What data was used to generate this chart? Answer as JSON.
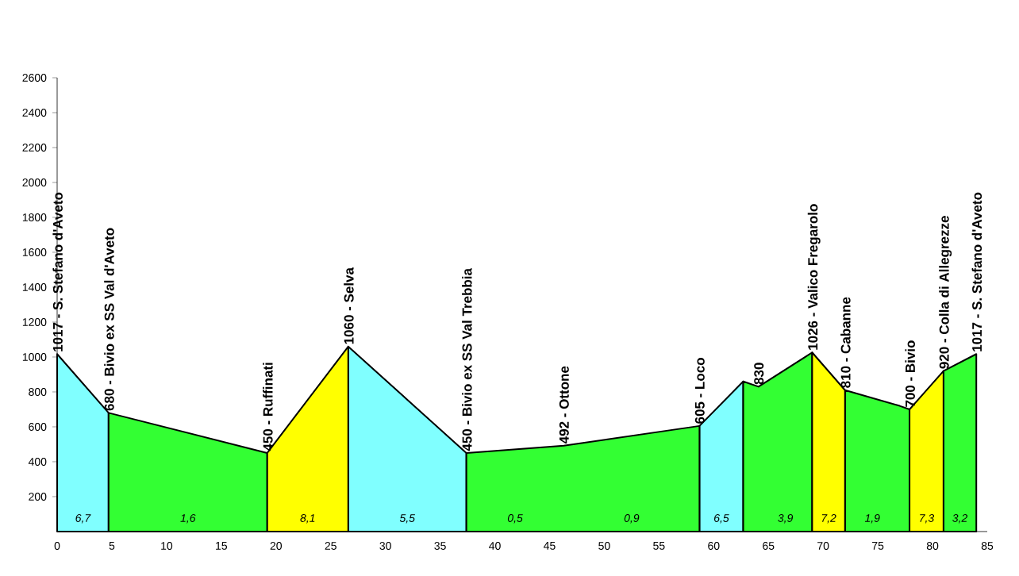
{
  "chart_data": {
    "type": "area",
    "series": [
      {
        "x": [
          0,
          4.7,
          19.2,
          26.6,
          37.4,
          46.3,
          58.7,
          62.7
        ],
        "values": [
          1017,
          680,
          null,
          1060,
          450,
          null,
          605,
          860
        ],
        "color": "#80ffff"
      },
      {
        "x": [
          4.7,
          19.2,
          26.6,
          37.4,
          46.3,
          58.7,
          60.7,
          62.7,
          64.1,
          69,
          70.5,
          72,
          77,
          77.9,
          79.45,
          81,
          84
        ],
        "values": [
          680,
          450,
          null,
          450,
          492,
          605,
          null,
          860,
          830,
          1026,
          null,
          810,
          720,
          700,
          null,
          920,
          1017
        ],
        "color": "#33ff33"
      },
      {
        "x": [
          19.2,
          26.6,
          46.3,
          69,
          72,
          77,
          77.9,
          81
        ],
        "values": [
          450,
          1060,
          null,
          1026,
          810,
          null,
          700,
          920
        ],
        "color": "#ffff00"
      }
    ],
    "annotations": [
      {
        "text": "1017 - S. Stefano d'Aveto",
        "x": 0,
        "y": 1017
      },
      {
        "text": "680 - Bivio ex SS Val d'Aveto",
        "x": 4.7,
        "y": 680
      },
      {
        "text": "450 - Ruffinati",
        "x": 19.2,
        "y": 450
      },
      {
        "text": "1060 - Selva",
        "x": 26.6,
        "y": 1060
      },
      {
        "text": "450 - Bivio ex SS Val Trebbia",
        "x": 37.4,
        "y": 450
      },
      {
        "text": "492 - Ottone",
        "x": 46.3,
        "y": 492
      },
      {
        "text": "605 - Loco",
        "x": 58.7,
        "y": 605
      },
      {
        "text": "830",
        "x": 64.1,
        "y": 830
      },
      {
        "text": "1026 - Valico Fregarolo",
        "x": 69,
        "y": 1026
      },
      {
        "text": "810 - Cabanne",
        "x": 72,
        "y": 810
      },
      {
        "text": "700 - Bivio",
        "x": 77.9,
        "y": 700
      },
      {
        "text": "920 - Colla di Allegrezze",
        "x": 81,
        "y": 920
      },
      {
        "text": "1017 - S. Stefano d'Aveto",
        "x": 84,
        "y": 1017
      },
      "6,7",
      "1,6",
      "8,1",
      "5,5",
      "0,5",
      "0,9",
      "6,5",
      "3,9",
      "7,2",
      "1,9",
      "7,3",
      "3,2"
    ],
    "xlim": [
      0,
      85
    ],
    "ylim": [
      0,
      2600
    ],
    "xticks": [
      0,
      5,
      10,
      15,
      20,
      25,
      30,
      35,
      40,
      45,
      50,
      55,
      60,
      65,
      70,
      75,
      80,
      85
    ],
    "yticks": [
      200,
      400,
      600,
      800,
      1000,
      1200,
      1400,
      1600,
      1800,
      2000,
      2200,
      2400,
      2600
    ],
    "grid": false
  }
}
